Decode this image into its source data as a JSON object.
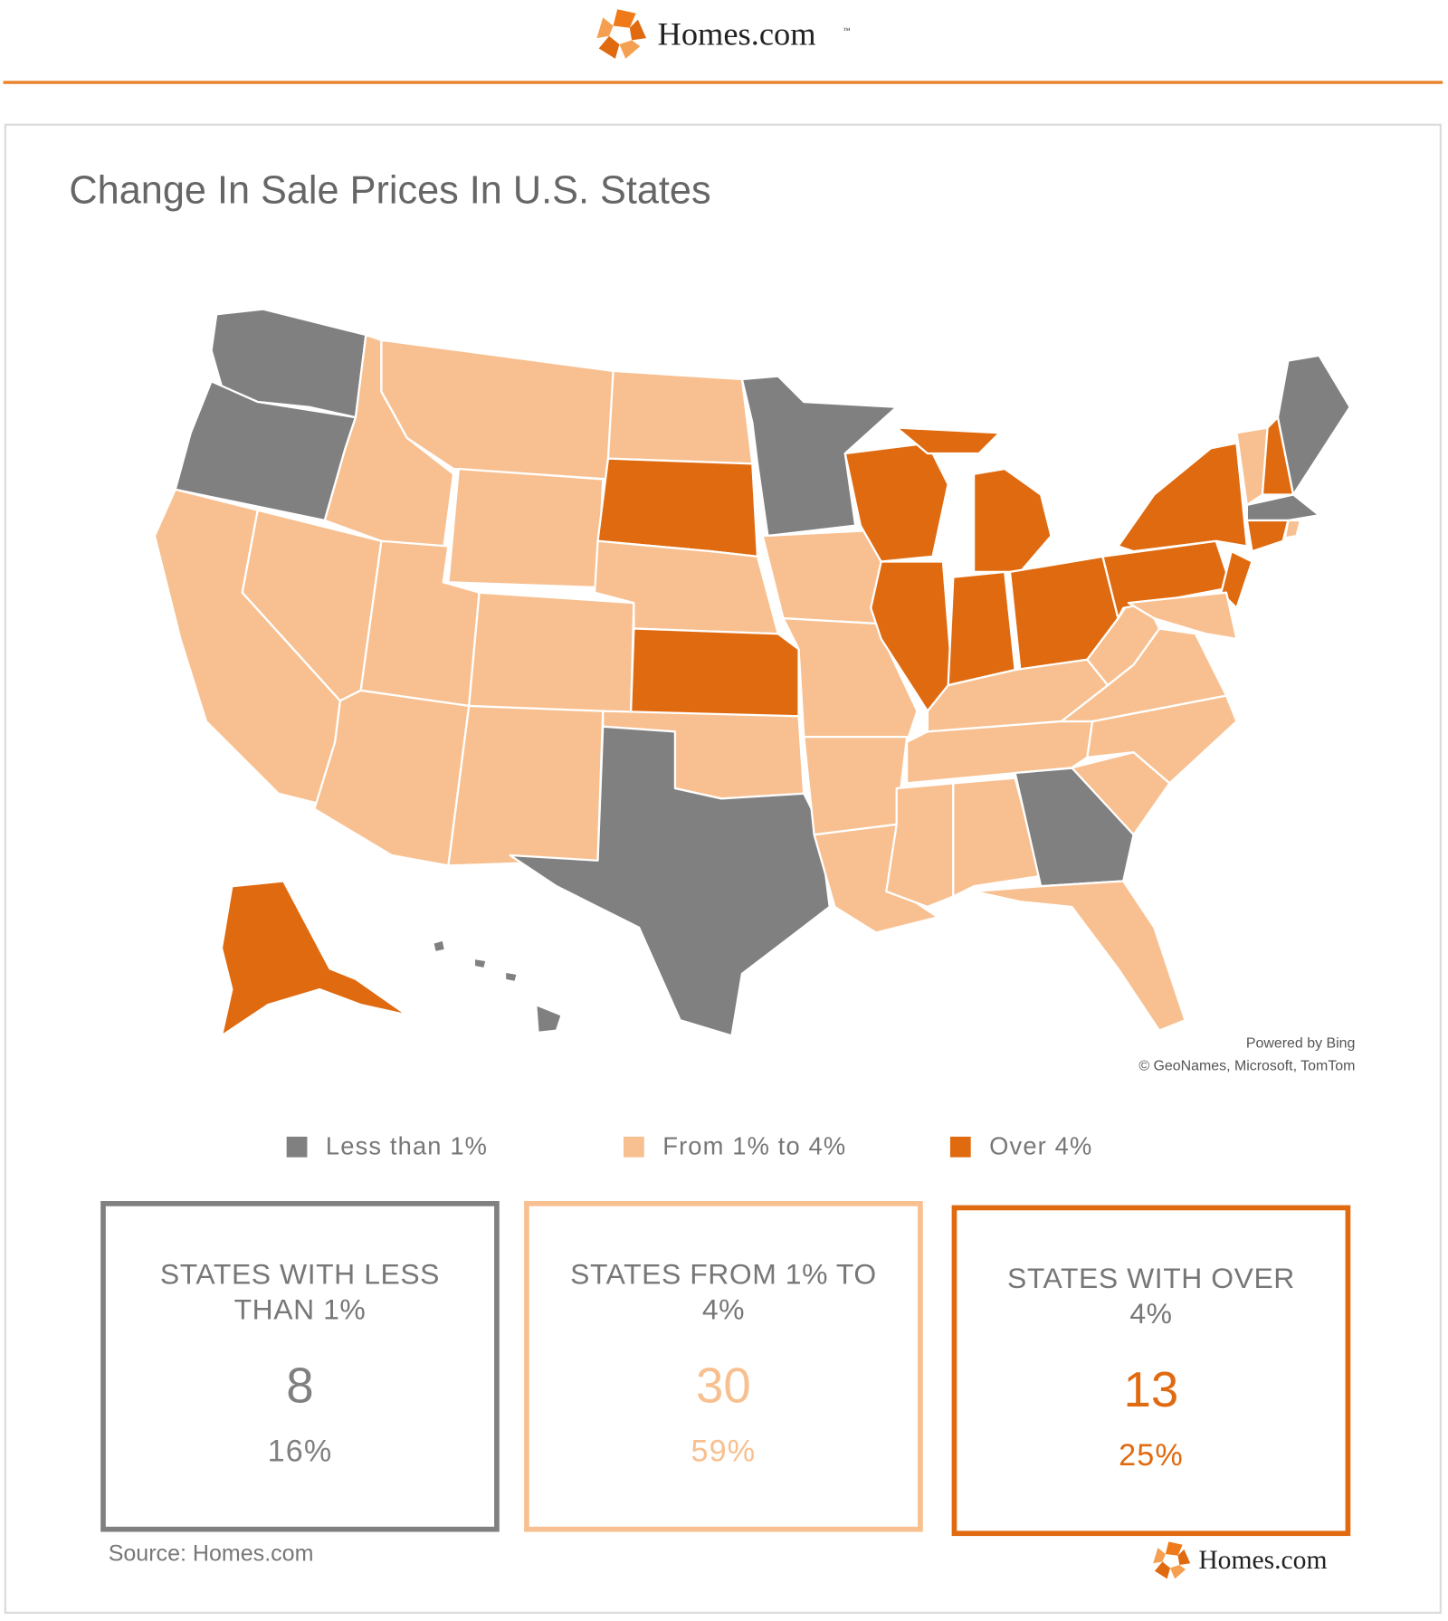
{
  "header": {
    "brand": "Homes.com",
    "trademark": "™"
  },
  "title": "Change In Sale Prices In U.S. States",
  "attribution": [
    "Powered by Bing",
    "© GeoNames, Microsoft, TomTom"
  ],
  "legend": [
    {
      "label": "Less than 1%",
      "color": "#808080"
    },
    {
      "label": "From 1% to 4%",
      "color": "#f8c090"
    },
    {
      "label": "Over 4%",
      "color": "#e06a10"
    }
  ],
  "cards": [
    {
      "title": "STATES WITH LESS THAN 1%",
      "count": 8,
      "share": "16%"
    },
    {
      "title": "STATES FROM 1% TO 4%",
      "count": 30,
      "share": "59%"
    },
    {
      "title": "STATES WITH OVER 4%",
      "count": 13,
      "share": "25%"
    }
  ],
  "source": "Source: Homes.com",
  "footer_brand": "Homes.com"
}
